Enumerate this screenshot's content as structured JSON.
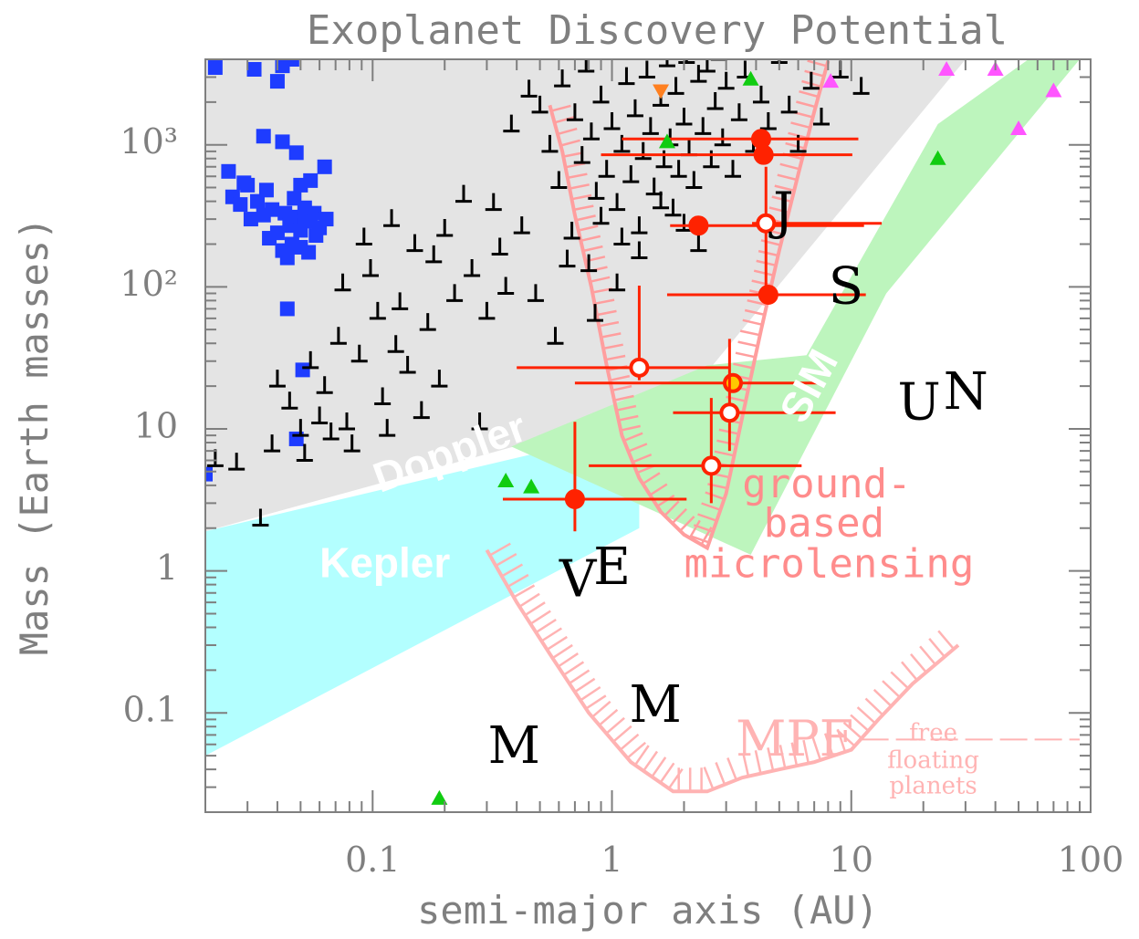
{
  "chart_data": {
    "type": "scatter",
    "title": "Exoplanet Discovery Potential",
    "xlabel": "semi-major axis (AU)",
    "ylabel": "Mass (Earth masses)",
    "xscale": "log",
    "yscale": "log",
    "xlim": [
      0.02,
      100
    ],
    "ylim": [
      0.02,
      4000
    ],
    "grid": false,
    "legend": "none",
    "x_ticks": [
      {
        "value": 0.1,
        "label": "0.1"
      },
      {
        "value": 1,
        "label": "1"
      },
      {
        "value": 10,
        "label": "10"
      },
      {
        "value": 100,
        "label": "100"
      }
    ],
    "y_ticks": [
      {
        "value": 0.1,
        "label": "0.1"
      },
      {
        "value": 1,
        "label": "1"
      },
      {
        "value": 10,
        "label": "10"
      },
      {
        "value": 100,
        "label": "10²"
      },
      {
        "value": 1000,
        "label": "10³"
      }
    ],
    "colors": {
      "doppler_region": "#e4e4e4",
      "kepler_region": "#b3ffff",
      "sim_region": "#bdf5bd",
      "microlensing": "#ff9e9e",
      "transit_points": "#1e3cff",
      "radial_velocity_points": "#000000",
      "microlensing_points": "#ff2200",
      "microlensing_highlight_fill": "#ffc800",
      "imaging_points": "#ff55ff",
      "pulsar_points": "#11cc11",
      "astrometry_point": "#ff8020"
    },
    "region_labels": {
      "doppler": "Doppler",
      "kepler": "Kepler",
      "sim": "SIM",
      "microlensing_line1": "ground-",
      "microlensing_line2": "based",
      "microlensing_line3": "microlensing",
      "mpf": "MPF",
      "free_floating_line1": "free",
      "free_floating_line2": "floating",
      "free_floating_line3": "planets"
    },
    "solar_system_labels": [
      {
        "text": "J",
        "a": 5.2,
        "m": 318
      },
      {
        "text": "S",
        "a": 9.5,
        "m": 95
      },
      {
        "text": "U",
        "a": 19.2,
        "m": 14.5
      },
      {
        "text": "N",
        "a": 30.1,
        "m": 17.1
      },
      {
        "text": "V",
        "a": 0.72,
        "m": 0.82
      },
      {
        "text": "E",
        "a": 1.0,
        "m": 1.0
      },
      {
        "text": "M",
        "a": 0.39,
        "m": 0.055
      },
      {
        "text": "M",
        "a": 1.52,
        "m": 0.107
      }
    ],
    "series": [
      {
        "kind": "transit",
        "marker": "square",
        "points": [
          [
            0.022,
            3500
          ],
          [
            0.032,
            3400
          ],
          [
            0.042,
            3600
          ],
          [
            0.046,
            4000
          ],
          [
            0.04,
            2800
          ],
          [
            0.035,
            1150
          ],
          [
            0.042,
            1050
          ],
          [
            0.048,
            880
          ],
          [
            0.063,
            700
          ],
          [
            0.025,
            650
          ],
          [
            0.03,
            520
          ],
          [
            0.036,
            480
          ],
          [
            0.026,
            430
          ],
          [
            0.028,
            380
          ],
          [
            0.033,
            400
          ],
          [
            0.038,
            350
          ],
          [
            0.043,
            330
          ],
          [
            0.047,
            310
          ],
          [
            0.052,
            300
          ],
          [
            0.055,
            290
          ],
          [
            0.045,
            270
          ],
          [
            0.05,
            250
          ],
          [
            0.04,
            240
          ],
          [
            0.037,
            220
          ],
          [
            0.058,
            230
          ],
          [
            0.046,
            200
          ],
          [
            0.05,
            190
          ],
          [
            0.054,
            175
          ],
          [
            0.042,
            180
          ],
          [
            0.06,
            260
          ],
          [
            0.031,
            300
          ],
          [
            0.035,
            320
          ],
          [
            0.05,
            520
          ],
          [
            0.055,
            560
          ],
          [
            0.029,
            540
          ],
          [
            0.047,
            420
          ],
          [
            0.052,
            360
          ],
          [
            0.057,
            330
          ],
          [
            0.064,
            300
          ],
          [
            0.044,
            160
          ],
          [
            0.044,
            70
          ],
          [
            0.051,
            26
          ],
          [
            0.048,
            8.5
          ],
          [
            0.02,
            4.8
          ]
        ]
      },
      {
        "kind": "radial_velocity",
        "marker": "cross",
        "points": [
          [
            0.022,
            5.5
          ],
          [
            0.027,
            5.2
          ],
          [
            0.034,
            2.1
          ],
          [
            0.038,
            7
          ],
          [
            0.04,
            20
          ],
          [
            0.045,
            14
          ],
          [
            0.05,
            9
          ],
          [
            0.052,
            6
          ],
          [
            0.055,
            27
          ],
          [
            0.06,
            11
          ],
          [
            0.063,
            18
          ],
          [
            0.067,
            8.5
          ],
          [
            0.072,
            40
          ],
          [
            0.075,
            95
          ],
          [
            0.078,
            10
          ],
          [
            0.082,
            7
          ],
          [
            0.088,
            30
          ],
          [
            0.092,
            200
          ],
          [
            0.098,
            120
          ],
          [
            0.105,
            60
          ],
          [
            0.11,
            15
          ],
          [
            0.115,
            9
          ],
          [
            0.12,
            270
          ],
          [
            0.125,
            35
          ],
          [
            0.13,
            70
          ],
          [
            0.14,
            25
          ],
          [
            0.15,
            180
          ],
          [
            0.16,
            12
          ],
          [
            0.17,
            50
          ],
          [
            0.18,
            150
          ],
          [
            0.19,
            20
          ],
          [
            0.2,
            230
          ],
          [
            0.22,
            80
          ],
          [
            0.24,
            400
          ],
          [
            0.26,
            120
          ],
          [
            0.28,
            10
          ],
          [
            0.3,
            60
          ],
          [
            0.32,
            350
          ],
          [
            0.34,
            170
          ],
          [
            0.36,
            90
          ],
          [
            0.38,
            1250
          ],
          [
            0.42,
            240
          ],
          [
            0.45,
            2200
          ],
          [
            0.48,
            80
          ],
          [
            0.5,
            1700
          ],
          [
            0.55,
            900
          ],
          [
            0.6,
            500
          ],
          [
            0.62,
            2600
          ],
          [
            0.65,
            140
          ],
          [
            0.7,
            1500
          ],
          [
            0.75,
            750
          ],
          [
            0.78,
            3300
          ],
          [
            0.82,
            1100
          ],
          [
            0.86,
            420
          ],
          [
            0.9,
            2000
          ],
          [
            0.95,
            600
          ],
          [
            1.0,
            1300
          ],
          [
            1.05,
            350
          ],
          [
            1.1,
            900
          ],
          [
            1.15,
            2700
          ],
          [
            1.2,
            550
          ],
          [
            1.25,
            1600
          ],
          [
            1.3,
            240
          ],
          [
            1.35,
            800
          ],
          [
            1.4,
            3000
          ],
          [
            1.45,
            1200
          ],
          [
            1.5,
            450
          ],
          [
            1.6,
            1900
          ],
          [
            1.65,
            700
          ],
          [
            1.7,
            3600
          ],
          [
            1.75,
            1000
          ],
          [
            1.8,
            320
          ],
          [
            1.85,
            2300
          ],
          [
            1.9,
            600
          ],
          [
            2.0,
            1400
          ],
          [
            2.05,
            3800
          ],
          [
            2.1,
            850
          ],
          [
            2.2,
            500
          ],
          [
            2.3,
            2800
          ],
          [
            2.4,
            1200
          ],
          [
            2.5,
            3300
          ],
          [
            2.6,
            700
          ],
          [
            2.7,
            1800
          ],
          [
            2.8,
            4000
          ],
          [
            2.9,
            1000
          ],
          [
            3.0,
            2500
          ],
          [
            3.2,
            600
          ],
          [
            3.4,
            1500
          ],
          [
            3.6,
            3000
          ],
          [
            3.9,
            900
          ],
          [
            4.2,
            2000
          ],
          [
            4.5,
            1300
          ],
          [
            5.0,
            3800
          ],
          [
            5.5,
            1700
          ],
          [
            6.0,
            900
          ],
          [
            6.8,
            2500
          ],
          [
            7.5,
            1400
          ],
          [
            9.0,
            3000
          ],
          [
            11,
            2300
          ],
          [
            1.1,
            200
          ],
          [
            0.9,
            280
          ],
          [
            1.3,
            160
          ],
          [
            0.8,
            130
          ],
          [
            1.05,
            95
          ],
          [
            2.3,
            180
          ],
          [
            0.68,
            220
          ],
          [
            1.6,
            360
          ],
          [
            2.0,
            250
          ],
          [
            0.58,
            40
          ],
          [
            0.85,
            58
          ]
        ]
      },
      {
        "kind": "microlensing",
        "marker": "circle",
        "points": [
          {
            "a": 2.3,
            "m": 270,
            "xerr": [
              0.55,
              9
            ],
            "yerr": [
              0,
              0
            ],
            "style": "filled"
          },
          {
            "a": 4.4,
            "m": 280,
            "xerr": [
              0.55,
              9
            ],
            "yerr": [
              180,
              420
            ],
            "style": "open"
          },
          {
            "a": 4.5,
            "m": 88,
            "xerr": [
              2.8,
              7
            ],
            "yerr": [
              0,
              0
            ],
            "style": "filled"
          },
          {
            "a": 4.2,
            "m": 1100,
            "xerr": [
              3.1,
              6.5
            ],
            "yerr": [
              0,
              0
            ],
            "style": "filled"
          },
          {
            "a": 4.3,
            "m": 850,
            "xerr": [
              3.4,
              5.8
            ],
            "yerr": [
              0,
              0
            ],
            "style": "filled"
          },
          {
            "a": 1.3,
            "m": 27,
            "xerr": [
              0.9,
              1.8
            ],
            "yerr": [
              5,
              75
            ],
            "style": "open"
          },
          {
            "a": 3.2,
            "m": 21,
            "xerr": [
              2.5,
              4.2
            ],
            "yerr": [
              0,
              0
            ],
            "style": "highlight"
          },
          {
            "a": 3.1,
            "m": 13,
            "xerr": [
              1.3,
              5.5
            ],
            "yerr": [
              6,
              30
            ],
            "style": "open"
          },
          {
            "a": 2.6,
            "m": 5.5,
            "xerr": [
              1.8,
              3.6
            ],
            "yerr": [
              2.5,
              11
            ],
            "style": "open"
          },
          {
            "a": 0.7,
            "m": 3.2,
            "xerr": [
              0.35,
              1.35
            ],
            "yerr": [
              1.3,
              8
            ],
            "style": "filled"
          }
        ]
      },
      {
        "kind": "imaging",
        "marker": "triangle",
        "points": [
          [
            25,
            3400
          ],
          [
            40,
            3400
          ],
          [
            50,
            1300
          ],
          [
            70,
            2400
          ],
          [
            8.2,
            2800
          ]
        ]
      },
      {
        "kind": "pulsar",
        "marker": "triangle",
        "points": [
          [
            0.19,
            0.025
          ],
          [
            0.36,
            4.3
          ],
          [
            0.46,
            3.9
          ],
          [
            1.7,
            1050
          ],
          [
            3.8,
            2900
          ],
          [
            23,
            800
          ]
        ]
      },
      {
        "kind": "astrometry",
        "marker": "triangle-down",
        "points": [
          [
            1.6,
            2400
          ]
        ]
      }
    ],
    "microlensing_curve": [
      [
        0.55,
        1900
      ],
      [
        0.62,
        900
      ],
      [
        0.7,
        320
      ],
      [
        0.82,
        100
      ],
      [
        0.95,
        28
      ],
      [
        1.1,
        9
      ],
      [
        1.3,
        4.5
      ],
      [
        1.6,
        2.6
      ],
      [
        2.0,
        1.8
      ],
      [
        2.5,
        1.45
      ],
      [
        3.0,
        3.5
      ],
      [
        3.5,
        12
      ],
      [
        4.2,
        50
      ],
      [
        5.0,
        180
      ],
      [
        6.0,
        620
      ],
      [
        7.0,
        1700
      ],
      [
        8.0,
        3900
      ]
    ],
    "mpf_curve": [
      [
        0.3,
        1.4
      ],
      [
        0.4,
        0.6
      ],
      [
        0.55,
        0.26
      ],
      [
        0.8,
        0.1
      ],
      [
        1.2,
        0.045
      ],
      [
        1.8,
        0.028
      ],
      [
        2.5,
        0.028
      ],
      [
        3.5,
        0.035
      ],
      [
        5.0,
        0.04
      ],
      [
        7.0,
        0.045
      ],
      [
        10,
        0.055
      ],
      [
        13,
        0.09
      ],
      [
        18,
        0.16
      ],
      [
        28,
        0.3
      ]
    ],
    "free_floating_line": [
      [
        11,
        0.065
      ],
      [
        90,
        0.065
      ]
    ],
    "regions": {
      "doppler": [
        [
          0.02,
          4000
        ],
        [
          10,
          4000
        ],
        [
          30,
          4000
        ],
        [
          2.0,
          16
        ],
        [
          0.02,
          1.9
        ]
      ],
      "kepler": [
        [
          0.02,
          1.9
        ],
        [
          1.3,
          10
        ],
        [
          1.3,
          2.0
        ],
        [
          0.02,
          0.05
        ]
      ],
      "sim": [
        [
          0.38,
          7.5
        ],
        [
          2.5,
          28
        ],
        [
          6.5,
          33
        ],
        [
          23,
          1400
        ],
        [
          55,
          4000
        ],
        [
          90,
          4000
        ],
        [
          14,
          90
        ],
        [
          3.8,
          1.3
        ]
      ]
    }
  }
}
